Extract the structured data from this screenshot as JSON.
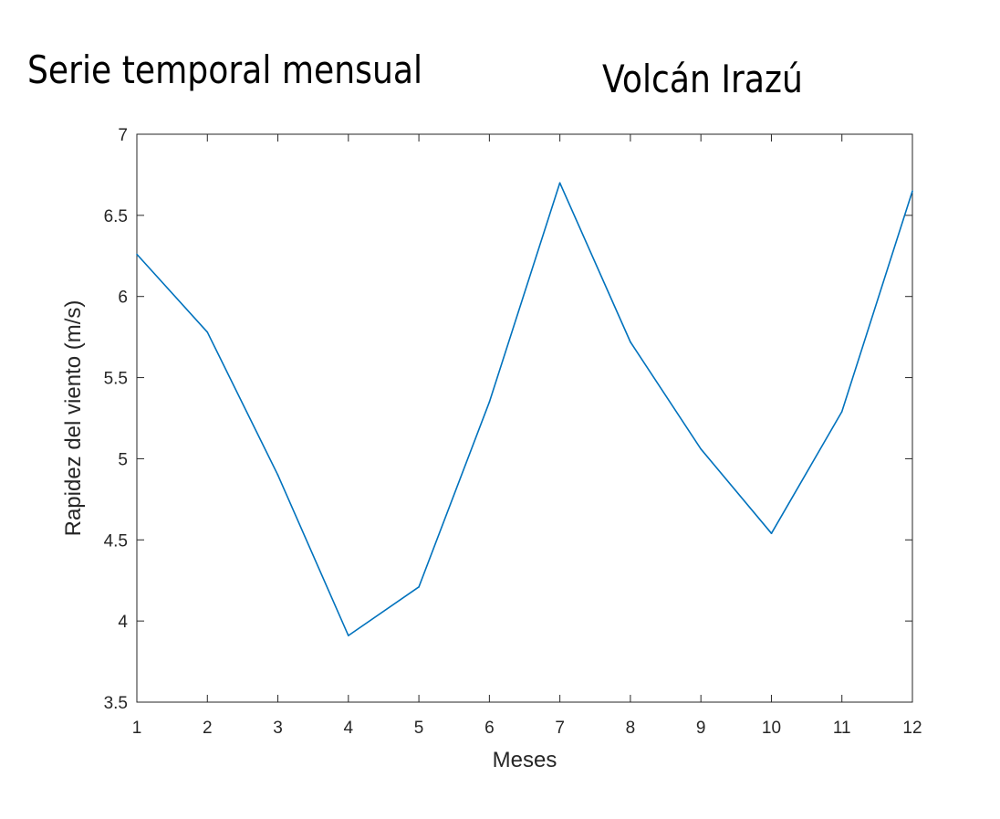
{
  "chart_data": {
    "type": "line",
    "title": "Serie temporal mensual",
    "subtitle": "Volcán Irazú",
    "xlabel": "Meses",
    "ylabel": "Rapidez del viento (m/s)",
    "xlim": [
      1,
      12
    ],
    "ylim": [
      3.5,
      7
    ],
    "x_ticks": [
      "1",
      "2",
      "3",
      "4",
      "5",
      "6",
      "7",
      "8",
      "9",
      "10",
      "11",
      "12"
    ],
    "y_ticks": [
      "3.5",
      "4",
      "4.5",
      "5",
      "5.5",
      "6",
      "6.5",
      "7"
    ],
    "grid": false,
    "series": [
      {
        "name": "Rapidez del viento",
        "color": "#0072BD",
        "x": [
          1,
          2,
          3,
          4,
          5,
          6,
          7,
          8,
          9,
          10,
          11,
          12
        ],
        "values": [
          6.26,
          5.78,
          4.9,
          3.91,
          4.21,
          5.35,
          6.7,
          5.72,
          5.06,
          4.54,
          5.29,
          6.65
        ]
      }
    ]
  }
}
